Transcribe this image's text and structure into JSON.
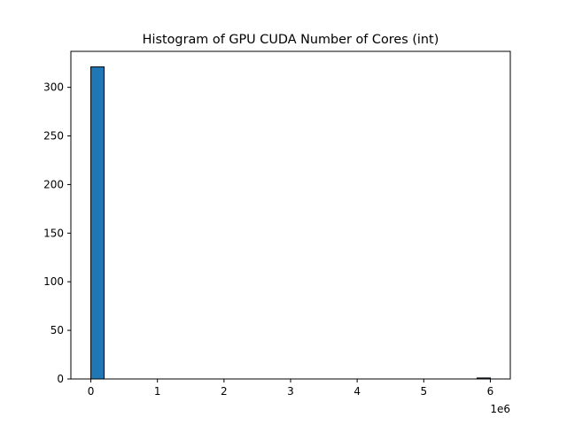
{
  "chart_data": {
    "type": "bar",
    "title": "Histogram of GPU CUDA Number of Cores (int)",
    "xlabel": "",
    "ylabel": "",
    "x_offset_label": "1e6",
    "x_scale": 1000000,
    "xlim": [
      -300000,
      6300000
    ],
    "ylim": [
      0,
      337
    ],
    "xticks": [
      0,
      1000000,
      2000000,
      3000000,
      4000000,
      5000000,
      6000000
    ],
    "xtick_labels": [
      "0",
      "1",
      "2",
      "3",
      "4",
      "5",
      "6"
    ],
    "yticks": [
      0,
      50,
      100,
      150,
      200,
      250,
      300
    ],
    "ytick_labels": [
      "0",
      "50",
      "100",
      "150",
      "200",
      "250",
      "300"
    ],
    "bin_start": 0,
    "bin_width": 200000,
    "bins": 30,
    "values": [
      321,
      0,
      0,
      0,
      0,
      0,
      0,
      0,
      0,
      0,
      0,
      0,
      0,
      0,
      0,
      0,
      0,
      0,
      0,
      0,
      0,
      0,
      0,
      0,
      0,
      0,
      0,
      0,
      0,
      1
    ],
    "grid": false,
    "colors": {
      "bar_fill": "#1f77b4",
      "bar_edge": "#000000",
      "axes": "#000000",
      "background": "#ffffff"
    }
  }
}
